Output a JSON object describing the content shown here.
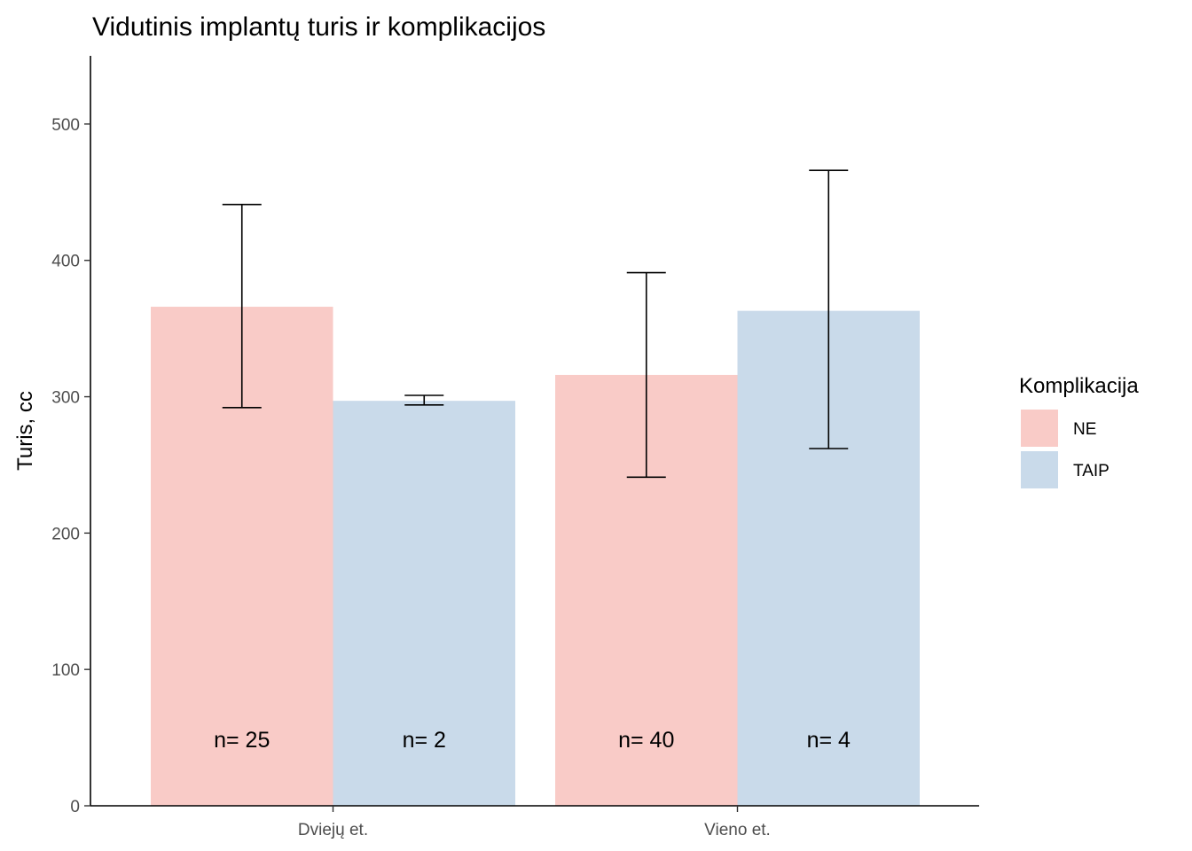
{
  "chart_data": {
    "type": "bar",
    "title": "Vidutinis implantų turis ir komplikacijos",
    "xlabel": "",
    "ylabel": "Turis, cc",
    "ylim": [
      0,
      550
    ],
    "yticks": [
      0,
      100,
      200,
      300,
      400,
      500
    ],
    "categories": [
      "Dviejų et.",
      "Vieno et."
    ],
    "legend": {
      "title": "Komplikacija",
      "position": "right"
    },
    "grid": false,
    "series": [
      {
        "name": "NE",
        "color": "#F9CBC7",
        "values": [
          366,
          316
        ],
        "error_low": [
          292,
          241
        ],
        "error_high": [
          441,
          391
        ],
        "n_labels": [
          "n= 25",
          "n= 40"
        ]
      },
      {
        "name": "TAIP",
        "color": "#C9DAEA",
        "values": [
          297,
          363
        ],
        "error_low": [
          294,
          262
        ],
        "error_high": [
          301,
          466
        ],
        "n_labels": [
          "n= 2",
          "n= 4"
        ]
      }
    ]
  }
}
